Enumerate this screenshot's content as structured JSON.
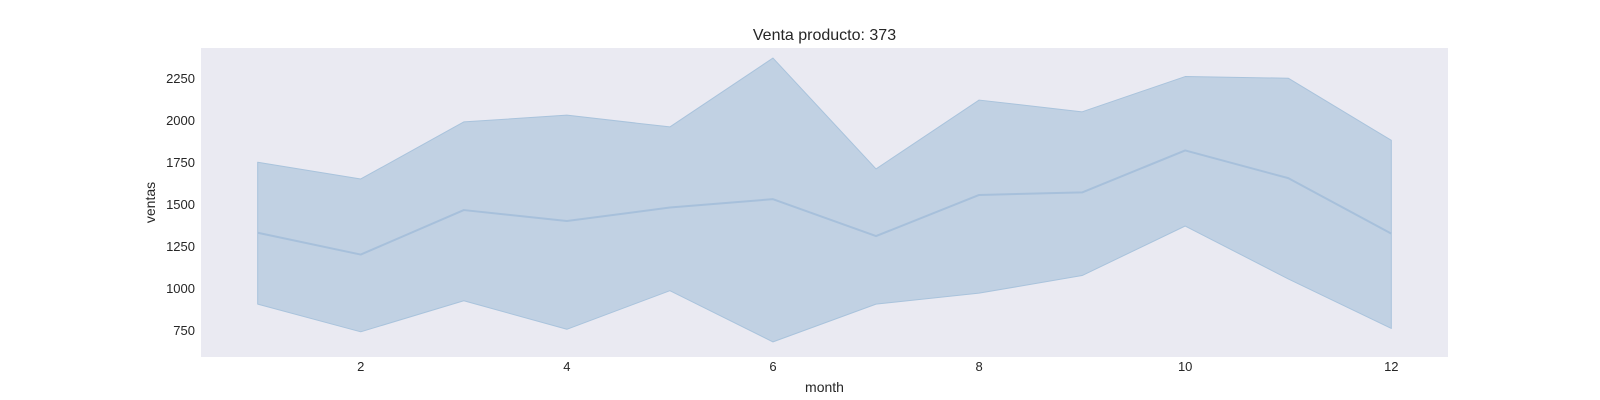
{
  "chart_data": {
    "type": "line",
    "title": "Venta producto: 373",
    "xlabel": "month",
    "ylabel": "ventas",
    "x": [
      1,
      2,
      3,
      4,
      5,
      6,
      7,
      8,
      9,
      10,
      11,
      12
    ],
    "xlim": [
      0.45,
      12.55
    ],
    "ylim": [
      590,
      2430
    ],
    "xticks": [
      2,
      4,
      6,
      8,
      10,
      12
    ],
    "yticks": [
      750,
      1000,
      1250,
      1500,
      1750,
      2000,
      2250
    ],
    "grid": false,
    "legend": "none",
    "series": [
      {
        "values": [
          1330,
          1200,
          1465,
          1400,
          1480,
          1530,
          1310,
          1555,
          1570,
          1820,
          1655,
          1325
        ],
        "ci_lower": [
          905,
          740,
          925,
          755,
          985,
          680,
          905,
          970,
          1075,
          1370,
          1055,
          760
        ],
        "ci_upper": [
          1750,
          1650,
          1990,
          2030,
          1960,
          2370,
          1710,
          2120,
          2050,
          2260,
          2250,
          1880
        ]
      }
    ],
    "colors": {
      "line": "#a7c0db",
      "band": "#c1d1e3",
      "band_edge": "#a9c3dc",
      "plot_background": "#eaeaf2"
    }
  }
}
